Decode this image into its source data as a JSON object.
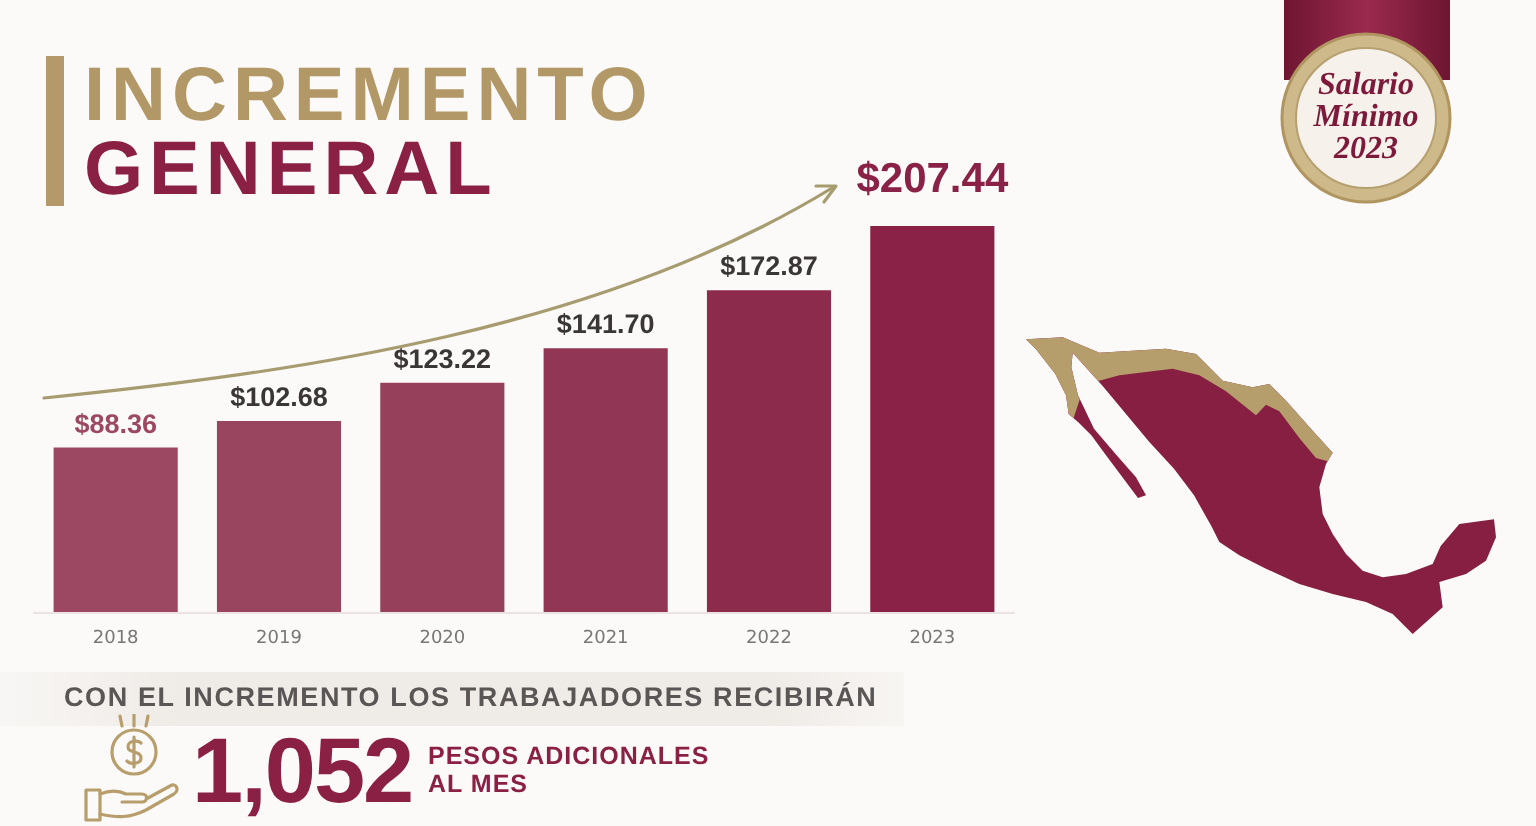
{
  "chart_data": {
    "type": "bar",
    "title": "INCREMENTO\nGENERAL",
    "categories": [
      "2018",
      "2019",
      "2020",
      "2021",
      "2022",
      "2023"
    ],
    "values": [
      88.36,
      102.68,
      123.22,
      141.7,
      172.87,
      207.44
    ],
    "colors": [
      "#9c4862",
      "#9a4560",
      "#97405c",
      "#923655",
      "#8d2b4c",
      "#8a2146"
    ],
    "value_labels": [
      "$88.36",
      "$102.68",
      "$123.22",
      "$141.70",
      "$172.87",
      "$207.44"
    ],
    "tick_labels": "x",
    "annotations": [
      "Salario Mínimo 2023",
      "CON EL INCREMENTO LOS TRABAJADORES RECIBIRÁN",
      "1,052",
      "PESOS ADICIONALES\nAL MES"
    ]
  }
}
